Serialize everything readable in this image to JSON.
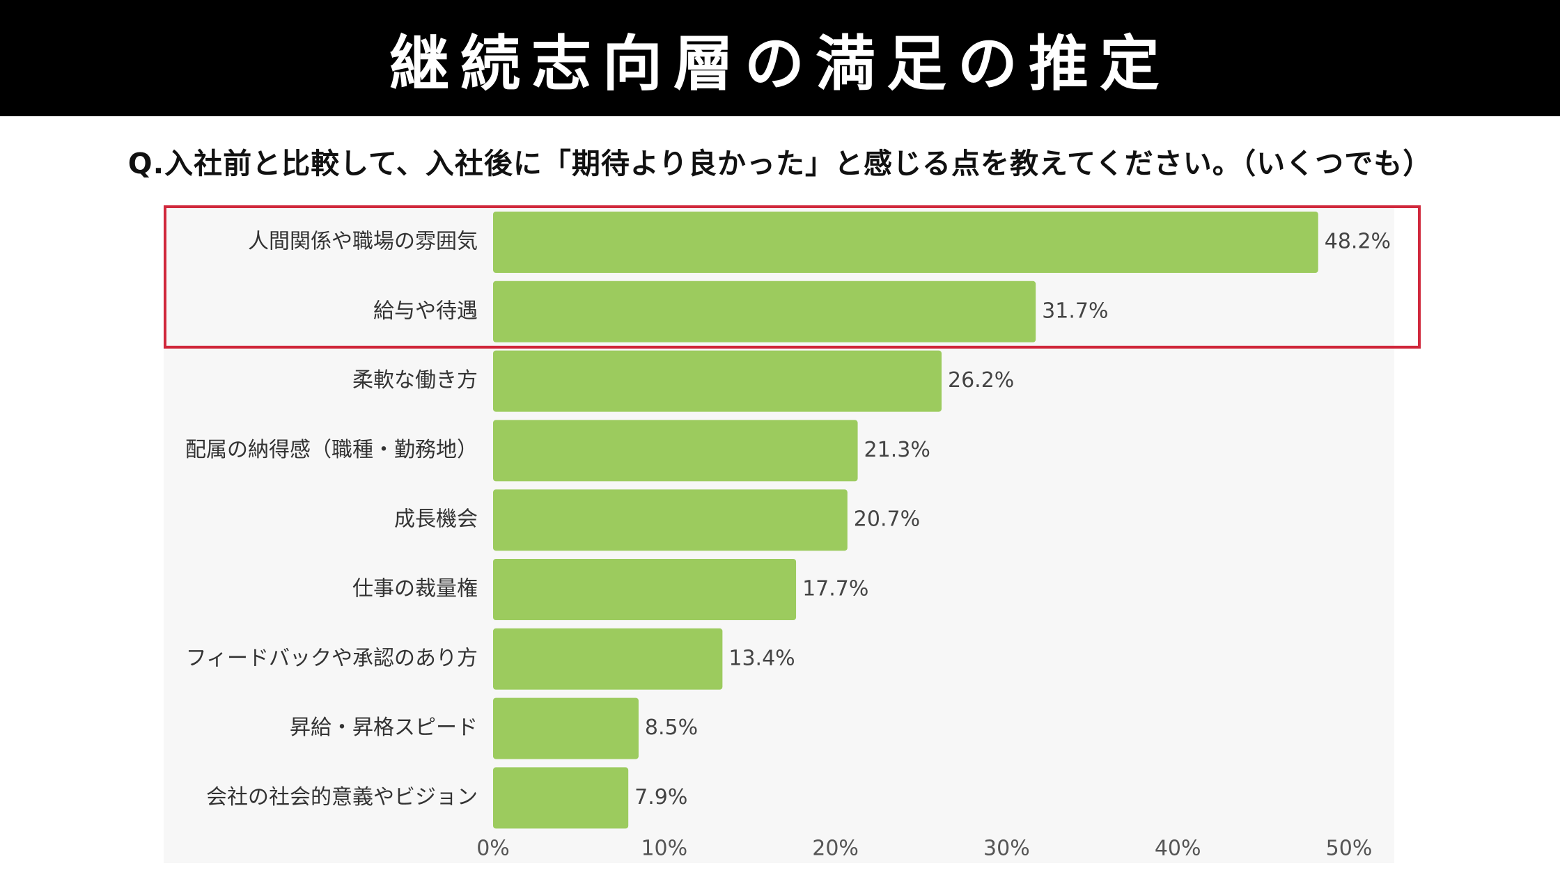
{
  "header": {
    "title": "継続志向層の満足の推定"
  },
  "question": "Q.入社前と比較して、入社後に「期待より良かった」と感じる点を教えてください。（いくつでも）",
  "colors": {
    "bar": "#9ccb5e",
    "highlight_border": "#d0283c",
    "plot_background": "#f7f7f7",
    "header_background": "#000000"
  },
  "chart_data": {
    "type": "bar",
    "orientation": "horizontal",
    "categories": [
      "人間関係や職場の雰囲気",
      "給与や待遇",
      "柔軟な働き方",
      "配属の納得感（職種・勤務地）",
      "成長機会",
      "仕事の裁量権",
      "フィードバックや承認のあり方",
      "昇給・昇格スピード",
      "会社の社会的意義やビジョン"
    ],
    "values": [
      48.2,
      31.7,
      26.2,
      21.3,
      20.7,
      17.7,
      13.4,
      8.5,
      7.9
    ],
    "value_labels": [
      "48.2%",
      "31.7%",
      "26.2%",
      "21.3%",
      "20.7%",
      "17.7%",
      "13.4%",
      "8.5%",
      "7.9%"
    ],
    "xlim": [
      0,
      50
    ],
    "xticks": [
      0,
      10,
      20,
      30,
      40,
      50
    ],
    "xtick_labels": [
      "0%",
      "10%",
      "20%",
      "30%",
      "40%",
      "50%"
    ],
    "highlighted_categories": [
      "人間関係や職場の雰囲気",
      "給与や待遇"
    ],
    "grid": false,
    "legend": "none"
  }
}
